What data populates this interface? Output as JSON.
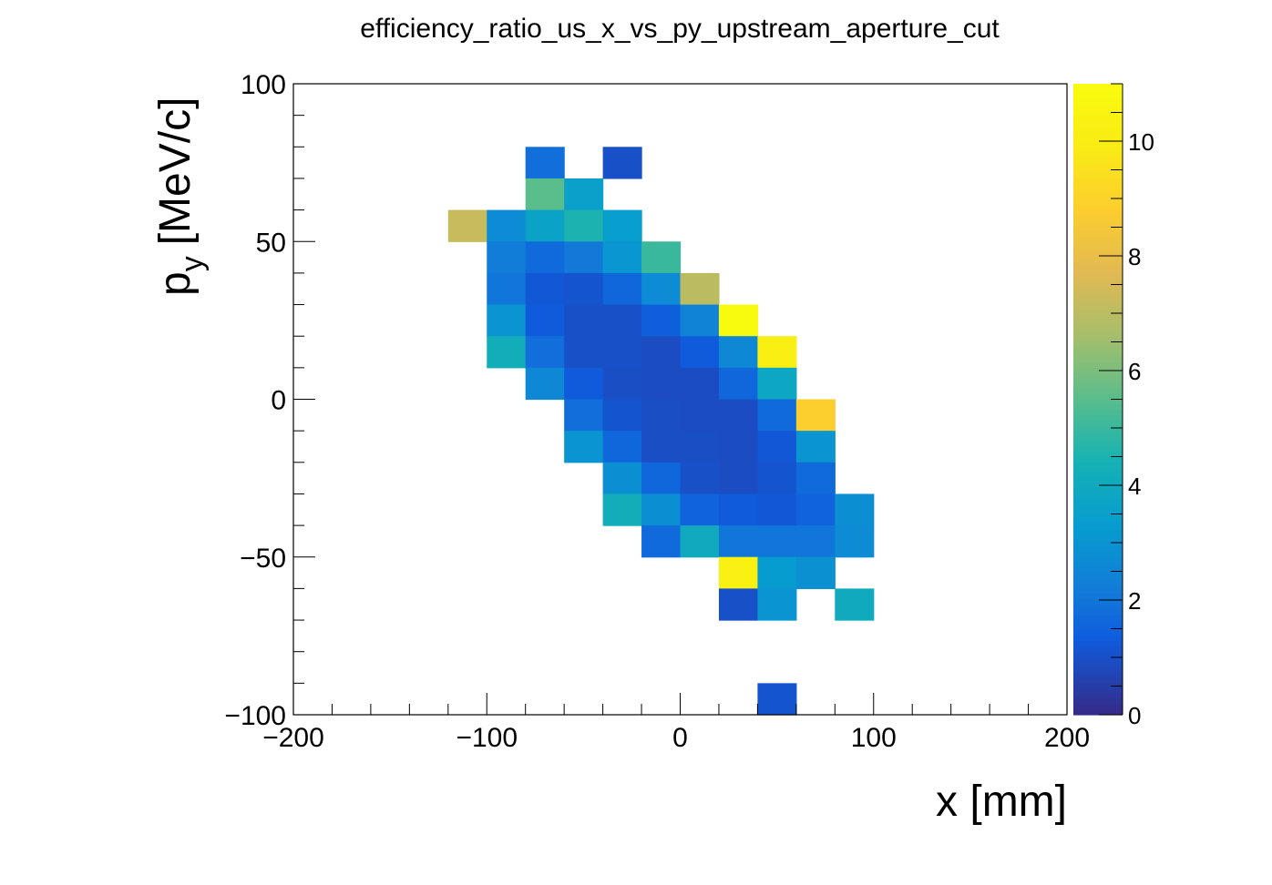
{
  "chart_data": {
    "type": "heatmap",
    "title": "efficiency_ratio_us_x_vs_py_upstream_aperture_cut",
    "xlabel": "x [mm]",
    "ylabel_main": "p",
    "ylabel_sub": "y",
    "ylabel_unit": "[MeV/c]",
    "xlim": [
      -200,
      200
    ],
    "ylim": [
      -100,
      100
    ],
    "zlim": [
      0,
      11
    ],
    "bin_width_x": 20,
    "bin_width_y": 10,
    "x_ticks": [
      -200,
      -100,
      0,
      100,
      200
    ],
    "x_tick_labels": [
      "−200",
      "−100",
      "0",
      "100",
      "200"
    ],
    "y_ticks": [
      -100,
      -50,
      0,
      50,
      100
    ],
    "y_tick_labels": [
      "−100",
      "−50",
      "0",
      "50",
      "100"
    ],
    "z_ticks": [
      0,
      2,
      4,
      6,
      8,
      10
    ],
    "z_tick_labels": [
      "0",
      "2",
      "4",
      "6",
      "8",
      "10"
    ],
    "colormap": "parula",
    "cells": [
      {
        "x": -70,
        "y": 75,
        "z": 1.8
      },
      {
        "x": -30,
        "y": 75,
        "z": 1.0
      },
      {
        "x": -70,
        "y": 65,
        "z": 5.5
      },
      {
        "x": -50,
        "y": 65,
        "z": 3.5
      },
      {
        "x": -110,
        "y": 55,
        "z": 7.2
      },
      {
        "x": -90,
        "y": 55,
        "z": 2.7
      },
      {
        "x": -70,
        "y": 55,
        "z": 3.6
      },
      {
        "x": -50,
        "y": 55,
        "z": 4.5
      },
      {
        "x": -30,
        "y": 55,
        "z": 3.4
      },
      {
        "x": -90,
        "y": 45,
        "z": 2.2
      },
      {
        "x": -70,
        "y": 45,
        "z": 1.7
      },
      {
        "x": -50,
        "y": 45,
        "z": 2.1
      },
      {
        "x": -30,
        "y": 45,
        "z": 3.1
      },
      {
        "x": -10,
        "y": 45,
        "z": 5.0
      },
      {
        "x": -90,
        "y": 35,
        "z": 2.0
      },
      {
        "x": -70,
        "y": 35,
        "z": 1.2
      },
      {
        "x": -50,
        "y": 35,
        "z": 1.1
      },
      {
        "x": -30,
        "y": 35,
        "z": 1.6
      },
      {
        "x": -10,
        "y": 35,
        "z": 2.7
      },
      {
        "x": 10,
        "y": 35,
        "z": 7.0
      },
      {
        "x": -90,
        "y": 25,
        "z": 3.0
      },
      {
        "x": -70,
        "y": 25,
        "z": 1.3
      },
      {
        "x": -50,
        "y": 25,
        "z": 1.0
      },
      {
        "x": -30,
        "y": 25,
        "z": 1.0
      },
      {
        "x": -10,
        "y": 25,
        "z": 1.4
      },
      {
        "x": 10,
        "y": 25,
        "z": 2.4
      },
      {
        "x": 30,
        "y": 25,
        "z": 11.0
      },
      {
        "x": -90,
        "y": 15,
        "z": 4.2
      },
      {
        "x": -70,
        "y": 15,
        "z": 1.8
      },
      {
        "x": -50,
        "y": 15,
        "z": 1.0
      },
      {
        "x": -30,
        "y": 15,
        "z": 1.0
      },
      {
        "x": -10,
        "y": 15,
        "z": 0.9
      },
      {
        "x": 10,
        "y": 15,
        "z": 1.3
      },
      {
        "x": 30,
        "y": 15,
        "z": 2.6
      },
      {
        "x": 50,
        "y": 15,
        "z": 10.2
      },
      {
        "x": -70,
        "y": 5,
        "z": 2.6
      },
      {
        "x": -50,
        "y": 5,
        "z": 1.3
      },
      {
        "x": -30,
        "y": 5,
        "z": 0.95
      },
      {
        "x": -10,
        "y": 5,
        "z": 0.9
      },
      {
        "x": 10,
        "y": 5,
        "z": 0.9
      },
      {
        "x": 30,
        "y": 5,
        "z": 1.6
      },
      {
        "x": 50,
        "y": 5,
        "z": 3.8
      },
      {
        "x": -50,
        "y": -5,
        "z": 1.8
      },
      {
        "x": -30,
        "y": -5,
        "z": 1.1
      },
      {
        "x": -10,
        "y": -5,
        "z": 0.95
      },
      {
        "x": 10,
        "y": -5,
        "z": 0.9
      },
      {
        "x": 30,
        "y": -5,
        "z": 0.9
      },
      {
        "x": 50,
        "y": -5,
        "z": 1.7
      },
      {
        "x": 70,
        "y": -5,
        "z": 8.8
      },
      {
        "x": -50,
        "y": -15,
        "z": 3.0
      },
      {
        "x": -30,
        "y": -15,
        "z": 1.6
      },
      {
        "x": -10,
        "y": -15,
        "z": 0.95
      },
      {
        "x": 10,
        "y": -15,
        "z": 0.95
      },
      {
        "x": 30,
        "y": -15,
        "z": 0.9
      },
      {
        "x": 50,
        "y": -15,
        "z": 1.2
      },
      {
        "x": 70,
        "y": -15,
        "z": 3.0
      },
      {
        "x": -30,
        "y": -25,
        "z": 2.8
      },
      {
        "x": -10,
        "y": -25,
        "z": 1.6
      },
      {
        "x": 10,
        "y": -25,
        "z": 1.0
      },
      {
        "x": 30,
        "y": -25,
        "z": 0.9
      },
      {
        "x": 50,
        "y": -25,
        "z": 1.1
      },
      {
        "x": 70,
        "y": -25,
        "z": 1.7
      },
      {
        "x": -30,
        "y": -35,
        "z": 4.2
      },
      {
        "x": -10,
        "y": -35,
        "z": 2.8
      },
      {
        "x": 10,
        "y": -35,
        "z": 1.5
      },
      {
        "x": 30,
        "y": -35,
        "z": 1.3
      },
      {
        "x": 50,
        "y": -35,
        "z": 1.2
      },
      {
        "x": 70,
        "y": -35,
        "z": 1.5
      },
      {
        "x": 90,
        "y": -35,
        "z": 2.8
      },
      {
        "x": -10,
        "y": -45,
        "z": 1.7
      },
      {
        "x": 10,
        "y": -45,
        "z": 4.0
      },
      {
        "x": 30,
        "y": -45,
        "z": 2.0
      },
      {
        "x": 50,
        "y": -45,
        "z": 2.0
      },
      {
        "x": 70,
        "y": -45,
        "z": 2.0
      },
      {
        "x": 90,
        "y": -45,
        "z": 2.7
      },
      {
        "x": 30,
        "y": -55,
        "z": 10.3
      },
      {
        "x": 50,
        "y": -55,
        "z": 3.3
      },
      {
        "x": 70,
        "y": -55,
        "z": 2.9
      },
      {
        "x": 30,
        "y": -65,
        "z": 1.0
      },
      {
        "x": 50,
        "y": -65,
        "z": 3.0
      },
      {
        "x": 90,
        "y": -65,
        "z": 4.0
      },
      {
        "x": 50,
        "y": -95,
        "z": 1.1
      }
    ]
  }
}
